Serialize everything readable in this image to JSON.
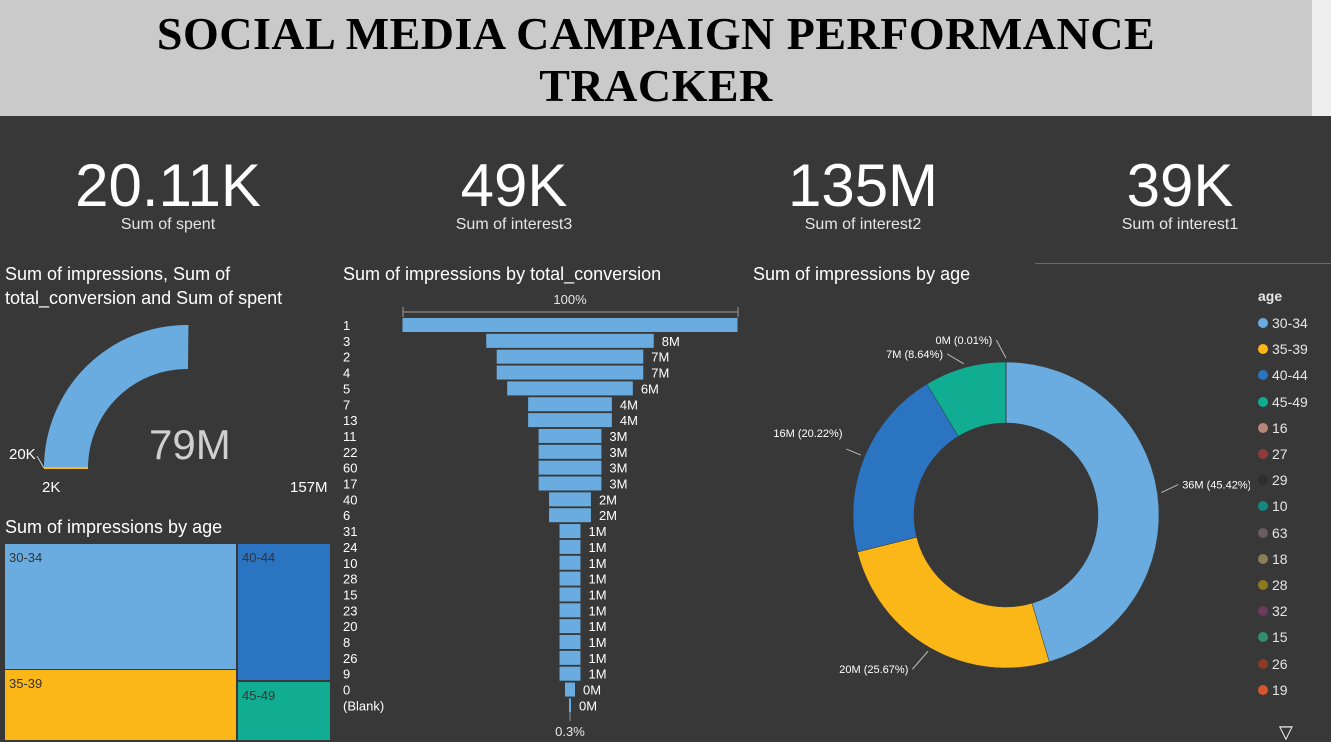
{
  "header": {
    "title_line1": "SOCIAL MEDIA CAMPAIGN PERFORMANCE",
    "title_line2": "TRACKER"
  },
  "kpis": [
    {
      "value": "20.11K",
      "label": "Sum of spent"
    },
    {
      "value": "49K",
      "label": "Sum of interest3"
    },
    {
      "value": "135M",
      "label": "Sum of interest2"
    },
    {
      "value": "39K",
      "label": "Sum of interest1"
    }
  ],
  "gauge": {
    "title": "Sum of impressions, Sum of total_conversion and Sum of spent",
    "value_label": "79M",
    "min_label": "2K",
    "max_label": "157M",
    "target_label": "20K",
    "value": 79,
    "min": 0.002,
    "max": 157,
    "color": "#6aacdf"
  },
  "treemap": {
    "title": "Sum of impressions by age",
    "cells": [
      {
        "label": "30-34",
        "color": "#6aacdf"
      },
      {
        "label": "35-39",
        "color": "#fbb717"
      },
      {
        "label": "40-44",
        "color": "#2b74c2"
      },
      {
        "label": "45-49",
        "color": "#10ad93"
      }
    ]
  },
  "funnel": {
    "title": "Sum of impressions by total_conversion",
    "top_pct": "100%",
    "bottom_pct": "0.3%",
    "color": "#6aacdf"
  },
  "donut": {
    "title": "Sum of impressions by age"
  },
  "legend": {
    "title": "age",
    "items": [
      {
        "label": "30-34",
        "color": "#6aacdf"
      },
      {
        "label": "35-39",
        "color": "#fbb717"
      },
      {
        "label": "40-44",
        "color": "#2b74c2"
      },
      {
        "label": "45-49",
        "color": "#10ad93"
      },
      {
        "label": "16",
        "color": "#b8877a"
      },
      {
        "label": "27",
        "color": "#8e3b3b"
      },
      {
        "label": "29",
        "color": "#2e2e2e"
      },
      {
        "label": "10",
        "color": "#12887e"
      },
      {
        "label": "63",
        "color": "#6b5b62"
      },
      {
        "label": "18",
        "color": "#8a7d5a"
      },
      {
        "label": "28",
        "color": "#8d7a1e"
      },
      {
        "label": "32",
        "color": "#6b3a5c"
      },
      {
        "label": "15",
        "color": "#2f8f6f"
      },
      {
        "label": "26",
        "color": "#8a3a22"
      },
      {
        "label": "19",
        "color": "#d4562e"
      }
    ]
  },
  "chart_data": [
    {
      "type": "bar",
      "title": "Sum of impressions by total_conversion",
      "categories": [
        "1",
        "3",
        "2",
        "4",
        "5",
        "7",
        "13",
        "11",
        "22",
        "60",
        "17",
        "40",
        "6",
        "31",
        "24",
        "10",
        "28",
        "15",
        "23",
        "20",
        "8",
        "26",
        "9",
        "0",
        "(Blank)"
      ],
      "values": [
        16,
        8,
        7,
        7,
        6,
        4,
        4,
        3,
        3,
        3,
        3,
        2,
        2,
        1,
        1,
        1,
        1,
        1,
        1,
        1,
        1,
        1,
        1,
        0,
        0
      ],
      "data_labels": [
        "",
        "8M",
        "7M",
        "7M",
        "6M",
        "4M",
        "4M",
        "3M",
        "3M",
        "3M",
        "3M",
        "2M",
        "2M",
        "1M",
        "1M",
        "1M",
        "1M",
        "1M",
        "1M",
        "1M",
        "1M",
        "1M",
        "1M",
        "0M",
        "0M"
      ],
      "top_pct": "100%",
      "bottom_pct": "0.3%"
    },
    {
      "type": "pie",
      "title": "Sum of impressions by age",
      "categories": [
        "30-34",
        "35-39",
        "40-44",
        "45-49",
        "16"
      ],
      "values": [
        45.42,
        25.67,
        20.22,
        8.64,
        0.01
      ],
      "data_labels": [
        "36M (45.42%)",
        "20M (25.67%)",
        "16M (20.22%)",
        "7M (8.64%)",
        "0M (0.01%)"
      ],
      "colors": [
        "#6aacdf",
        "#fbb717",
        "#2b74c2",
        "#10ad93",
        "#b8877a"
      ]
    }
  ]
}
